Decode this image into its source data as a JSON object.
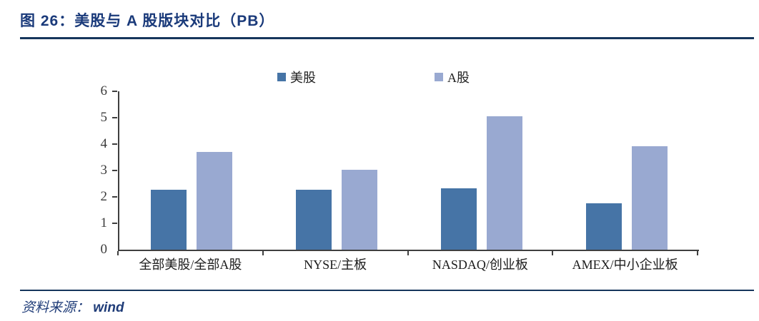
{
  "figure": {
    "title": "图 26：美股与 A 股版块对比（PB）",
    "source_prefix": "资料来源：",
    "source_name": "wind"
  },
  "colors": {
    "title_navy": "#1a3a7a",
    "rule_navy": "#16365c",
    "source_navy": "#1f3c78",
    "axis_gray": "#3f3f3f",
    "bar_us": "#4674a6",
    "bar_a": "#99a9d1"
  },
  "chart_data": {
    "type": "bar",
    "title": "图 26：美股与 A 股版块对比（PB）",
    "categories": [
      "全部美股/全部A股",
      "NYSE/主板",
      "NASDAQ/创业板",
      "AMEX/中小企业板"
    ],
    "series": [
      {
        "name": "美股",
        "color": "#4674a6",
        "values": [
          2.27,
          2.27,
          2.32,
          1.75
        ]
      },
      {
        "name": "A股",
        "color": "#99a9d1",
        "values": [
          3.71,
          3.02,
          5.06,
          3.91
        ]
      }
    ],
    "xlabel": "",
    "ylabel": "",
    "ylim": [
      0,
      6
    ],
    "yticks": [
      0,
      1,
      2,
      3,
      4,
      5,
      6
    ],
    "grid": false,
    "legend_position": "top"
  }
}
